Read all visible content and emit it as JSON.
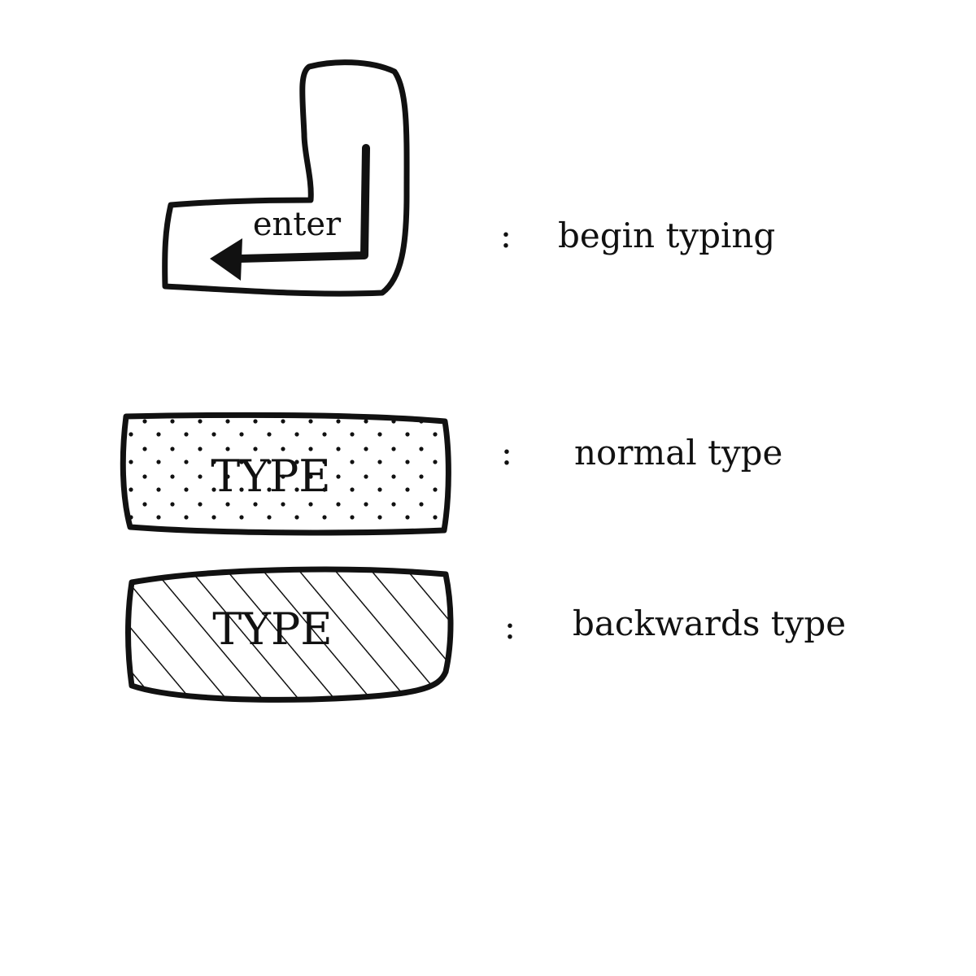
{
  "legend": {
    "items": [
      {
        "key_label": "enter",
        "key_icon": "enter-return-arrow-icon",
        "separator": ":",
        "meaning": "begin typing"
      },
      {
        "key_label": "TYPE",
        "key_fill": "dotted",
        "separator": ":",
        "meaning": "normal type"
      },
      {
        "key_label": "TYPE",
        "key_fill": "hatched",
        "separator": ":",
        "meaning": "backwards type"
      }
    ]
  },
  "colors": {
    "ink": "#111111",
    "background": "#ffffff"
  }
}
